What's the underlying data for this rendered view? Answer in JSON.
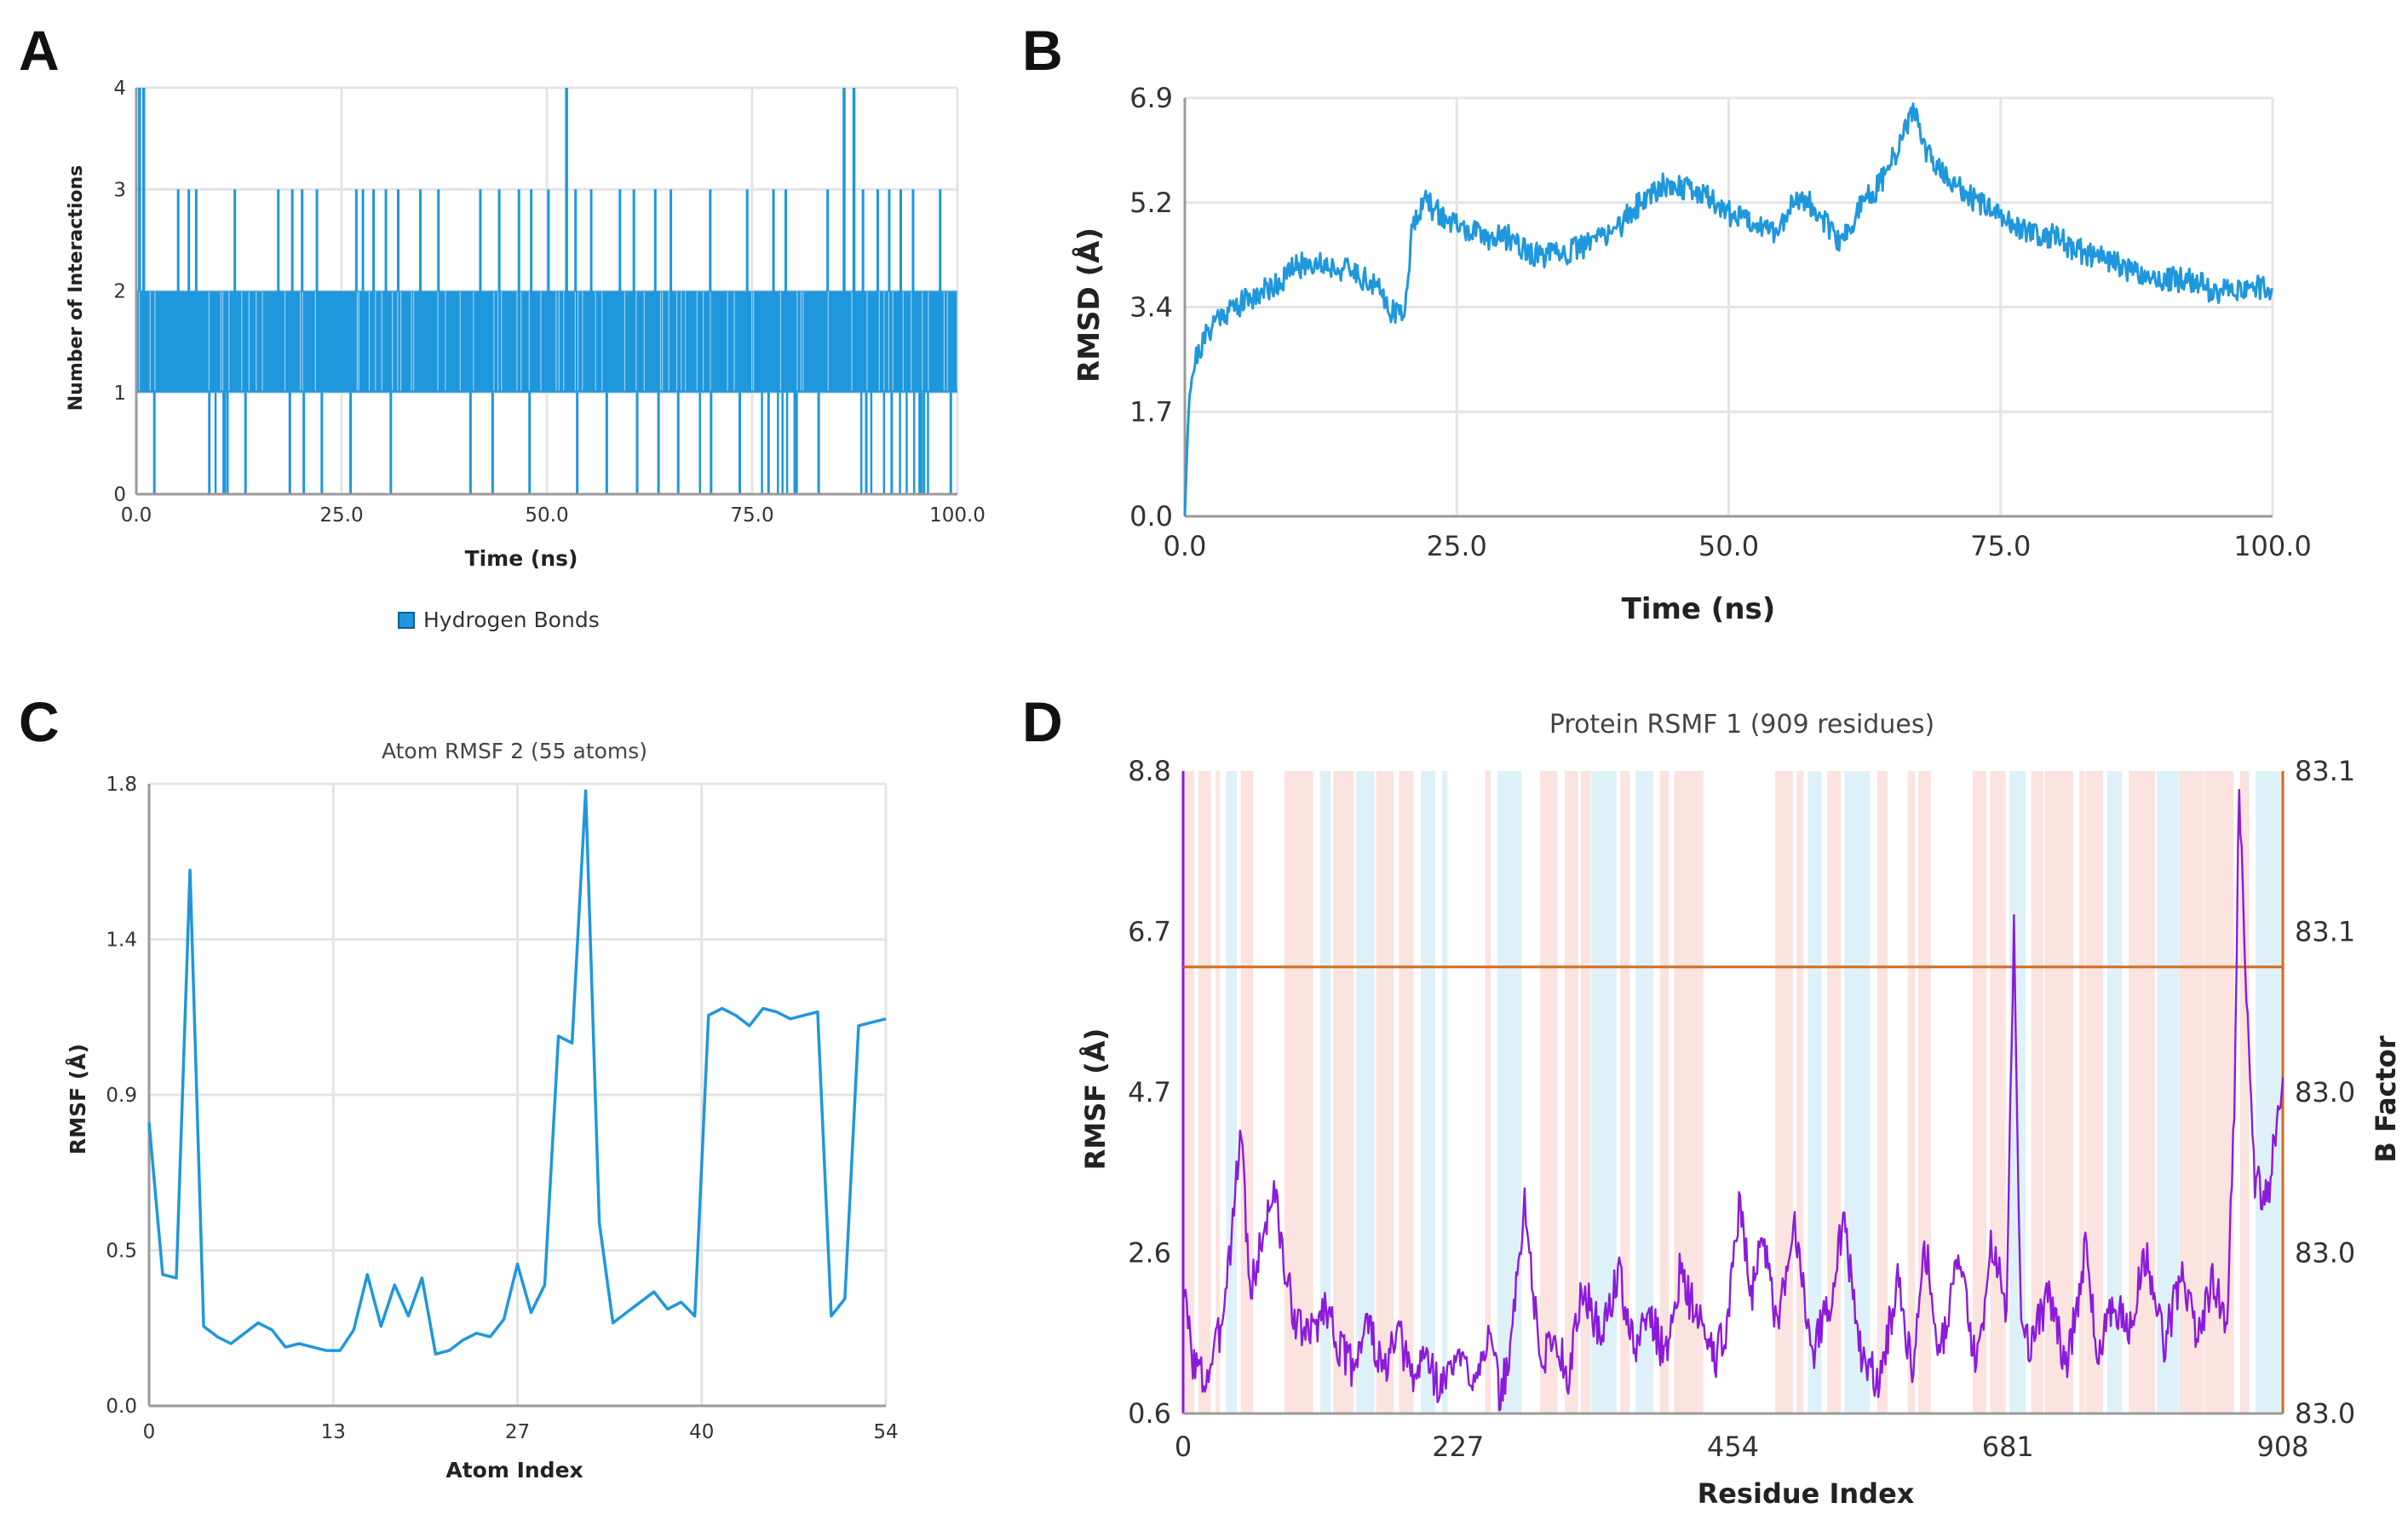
{
  "panels": {
    "A": {
      "letter": "A",
      "chart_data": {
        "type": "bar",
        "title": "",
        "xlabel": "Time (ns)",
        "ylabel": "Number of Interactions",
        "xlim": [
          0,
          100
        ],
        "ylim": [
          0,
          4
        ],
        "xticks": [
          "0.0",
          "25.0",
          "50.0",
          "75.0",
          "100.0"
        ],
        "yticks": [
          "0",
          "1",
          "2",
          "3",
          "4"
        ],
        "legend": "Hydrogen Bonds",
        "color": "#1f97dc",
        "series_description": "Hydrogen bond count per frame over 100 ns; mostly oscillates between 1 and 2 with occasional 0, 3 and 4",
        "peaks_4_at_ns": [
          0.4,
          0.9,
          52.4,
          86.2,
          87.4
        ],
        "gaps_1_to_0_at_ns": [
          2.2,
          8.9,
          10.8,
          13.3,
          18.7,
          20.4,
          22.6,
          26.1,
          31.0,
          40.7,
          43.4,
          47.9,
          53.7,
          57.3,
          61.0,
          63.6,
          66.0,
          70.0,
          73.5,
          77.0,
          80.2,
          83.1,
          88.9,
          92.0,
          95.4,
          99.2
        ],
        "frames_with_3_at_ns": [
          5.1,
          6.4,
          7.3,
          12.0,
          17.3,
          19.0,
          20.2,
          22.0,
          26.8,
          27.6,
          28.9,
          30.4,
          31.9,
          34.6,
          36.8,
          41.9,
          44.2,
          46.6,
          48.1,
          50.2,
          53.5,
          55.4,
          58.9,
          60.6,
          63.2,
          65.1,
          69.9,
          74.4,
          77.6,
          79.1,
          84.2,
          88.5,
          90.3,
          91.7,
          93.1,
          94.6,
          97.9
        ]
      }
    },
    "B": {
      "letter": "B",
      "chart_data": {
        "type": "line",
        "title": "",
        "xlabel": "Time (ns)",
        "ylabel": "RMSD (Å)",
        "xlim": [
          0,
          100
        ],
        "ylim": [
          0,
          6.9
        ],
        "xticks": [
          "0.0",
          "25.0",
          "50.0",
          "75.0",
          "100.0"
        ],
        "yticks": [
          "0.0",
          "1.7",
          "3.4",
          "5.2",
          "6.9"
        ],
        "color": "#1f97dc",
        "x": [
          0,
          0.4,
          1,
          2,
          3,
          5,
          7,
          9,
          10,
          12,
          14,
          16,
          18,
          19,
          20,
          20.5,
          21,
          22,
          24,
          26,
          28,
          30,
          32,
          34,
          36,
          38,
          40,
          42,
          44,
          46,
          48,
          50,
          52,
          54,
          55,
          56,
          58,
          60,
          61,
          62,
          64,
          66,
          67,
          68,
          70,
          72,
          75,
          78,
          80,
          82,
          85,
          88,
          90,
          92,
          95,
          98,
          100
        ],
        "y": [
          0.0,
          2.1,
          2.6,
          3.0,
          3.3,
          3.5,
          3.7,
          3.9,
          4.1,
          4.2,
          4.1,
          4.0,
          3.7,
          3.4,
          3.3,
          3.9,
          4.9,
          5.2,
          4.9,
          4.7,
          4.6,
          4.6,
          4.3,
          4.3,
          4.4,
          4.6,
          4.8,
          5.2,
          5.5,
          5.4,
          5.3,
          5.0,
          4.9,
          4.7,
          4.8,
          5.3,
          5.1,
          4.5,
          4.7,
          5.1,
          5.5,
          6.2,
          6.8,
          6.0,
          5.6,
          5.3,
          4.9,
          4.7,
          4.6,
          4.4,
          4.2,
          4.0,
          3.9,
          3.9,
          3.7,
          3.8,
          3.7
        ]
      }
    },
    "C": {
      "letter": "C",
      "chart_data": {
        "type": "line",
        "title": "Atom RMSF 2 (55 atoms)",
        "xlabel": "Atom Index",
        "ylabel": "RMSF (Å)",
        "xlim": [
          0,
          54
        ],
        "ylim": [
          0,
          1.8
        ],
        "xticks": [
          "0",
          "13",
          "27",
          "40",
          "54"
        ],
        "yticks": [
          "0.0",
          "0.5",
          "0.9",
          "1.4",
          "1.8"
        ],
        "color": "#1f97dc",
        "x": [
          0,
          1,
          2,
          3,
          4,
          5,
          6,
          7,
          8,
          9,
          10,
          11,
          12,
          13,
          14,
          15,
          16,
          17,
          18,
          19,
          20,
          21,
          22,
          23,
          24,
          25,
          26,
          27,
          28,
          29,
          30,
          31,
          32,
          33,
          34,
          35,
          36,
          37,
          38,
          39,
          40,
          41,
          42,
          43,
          44,
          45,
          46,
          47,
          48,
          49,
          50,
          51,
          52,
          53,
          54
        ],
        "values": [
          0.82,
          0.38,
          0.37,
          1.55,
          0.23,
          0.2,
          0.18,
          0.21,
          0.24,
          0.22,
          0.17,
          0.18,
          0.17,
          0.16,
          0.16,
          0.22,
          0.38,
          0.23,
          0.35,
          0.26,
          0.37,
          0.15,
          0.16,
          0.19,
          0.21,
          0.2,
          0.25,
          0.41,
          0.27,
          0.35,
          1.07,
          1.05,
          1.78,
          0.53,
          0.24,
          0.27,
          0.3,
          0.33,
          0.28,
          0.3,
          0.26,
          1.13,
          1.15,
          1.13,
          1.1,
          1.15,
          1.14,
          1.12,
          1.13,
          1.14,
          0.26,
          0.31,
          1.1,
          1.11,
          1.12
        ]
      }
    },
    "D": {
      "letter": "D",
      "chart_data": {
        "type": "line",
        "title": "Protein RSMF 1 (909 residues)",
        "xlabel": "Residue Index",
        "ylabel": "RMSF (Å)",
        "ylabel_right": "B Factor",
        "xlim": [
          0,
          908
        ],
        "ylim": [
          0.6,
          8.8
        ],
        "ylim_right": [
          83.0,
          83.1
        ],
        "xticks": [
          "0",
          "227",
          "454",
          "681",
          "908"
        ],
        "yticks": [
          "0.6",
          "2.6",
          "4.7",
          "6.7",
          "8.8"
        ],
        "yticks_right": [
          "83.0",
          "83.0",
          "83.0",
          "83.1",
          "83.1"
        ],
        "rmsf_color": "#8c1adb",
        "bfactor_color": "#d2691e",
        "helix_band_color": "#fbe3df",
        "strand_band_color": "#dff1f8",
        "bfactor_level": 6.3,
        "x": [
          0,
          8,
          18,
          30,
          40,
          48,
          55,
          62,
          75,
          85,
          95,
          105,
          118,
          130,
          140,
          152,
          165,
          178,
          190,
          200,
          212,
          225,
          240,
          252,
          262,
          270,
          282,
          295,
          305,
          318,
          330,
          345,
          360,
          372,
          385,
          398,
          410,
          425,
          440,
          448,
          460,
          470,
          478,
          490,
          505,
          520,
          535,
          545,
          560,
          575,
          590,
          602,
          612,
          625,
          640,
          655,
          668,
          680,
          686,
          692,
          700,
          715,
          730,
          745,
          755,
          768,
          780,
          795,
          810,
          825,
          838,
          850,
          862,
          868,
          872,
          876,
          880,
          885,
          895,
          908
        ],
        "values": [
          2.2,
          1.3,
          1.0,
          1.6,
          2.9,
          4.3,
          2.1,
          2.6,
          3.5,
          2.3,
          1.7,
          1.6,
          2.0,
          1.4,
          1.2,
          1.8,
          1.1,
          1.6,
          1.0,
          1.4,
          0.9,
          1.3,
          1.1,
          1.6,
          0.8,
          1.4,
          3.3,
          1.2,
          1.6,
          1.1,
          2.2,
          1.6,
          2.4,
          1.4,
          1.9,
          1.3,
          2.4,
          1.8,
          1.3,
          1.7,
          3.3,
          2.1,
          3.0,
          1.6,
          3.0,
          1.4,
          2.1,
          3.1,
          1.3,
          1.0,
          2.3,
          1.2,
          2.8,
          1.4,
          2.6,
          1.2,
          2.8,
          1.9,
          6.9,
          1.7,
          1.5,
          2.1,
          1.2,
          2.7,
          1.3,
          2.1,
          1.6,
          2.6,
          1.5,
          2.4,
          1.6,
          2.3,
          1.8,
          4.6,
          8.8,
          6.5,
          5.1,
          3.6,
          3.3,
          4.9
        ]
      }
    }
  }
}
